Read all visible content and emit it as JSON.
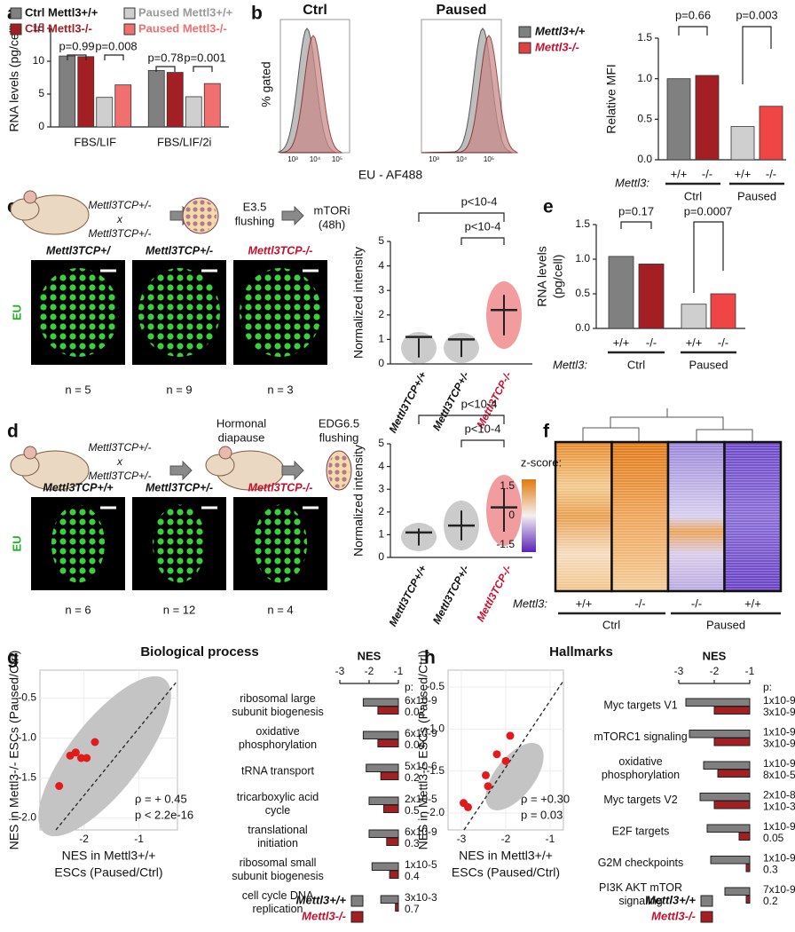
{
  "panel_labels": [
    "a",
    "b",
    "c",
    "d",
    "e",
    "f",
    "g",
    "h"
  ],
  "chart_data": [
    {
      "type": "bar",
      "ylabel": "RNA levels (pg/cell)",
      "categories": [
        "FBS/LIF",
        "FBS/LIF/2i"
      ],
      "series": [
        {
          "name": "Ctrl Mettl3+/+",
          "color": "#808080",
          "values": [
            10.8,
            8.6
          ]
        },
        {
          "name": "Ctrl Mettl3-/-",
          "color": "#a31f24",
          "values": [
            10.7,
            8.3
          ]
        },
        {
          "name": "Paused Mettl3+/+",
          "color": "#cfcfcf",
          "values": [
            4.5,
            4.6
          ]
        },
        {
          "name": "Paused Mettl3-/-",
          "color": "#f07070",
          "values": [
            6.4,
            6.6
          ]
        }
      ],
      "ylim": [
        0,
        15
      ],
      "yticks": [
        0,
        5,
        10,
        15
      ],
      "annotations": [
        "p=0.99",
        "p=0.008",
        "p=0.78",
        "p=0.001"
      ]
    },
    {
      "type": "bar",
      "ylabel": "Relative MFI",
      "axis_label": "Mettl3:",
      "categories": [
        "+/+",
        "-/-",
        "+/+",
        "-/-"
      ],
      "groups": [
        "Ctrl",
        "Paused"
      ],
      "values": [
        1.0,
        1.04,
        0.41,
        0.66
      ],
      "colors": [
        "#808080",
        "#a31f24",
        "#cfcfcf",
        "#f04545"
      ],
      "ylim": [
        0,
        1.5
      ],
      "yticks": [
        {
          "value": 0,
          "label": "0.0"
        },
        0.5,
        {
          "value": 1,
          "label": "1.0"
        },
        1.5
      ],
      "annotations": [
        "p=0.66",
        "p=0.003"
      ]
    },
    {
      "type": "bar",
      "ylabel": [
        "RNA levels",
        "(pg/cell)"
      ],
      "axis_label": "Mettl3:",
      "categories": [
        "+/+",
        "-/-",
        "+/+",
        "-/-"
      ],
      "groups": [
        "Ctrl",
        "Paused"
      ],
      "values": [
        1.04,
        0.93,
        0.35,
        0.5
      ],
      "colors": [
        "#808080",
        "#a31f24",
        "#cfcfcf",
        "#f04545"
      ],
      "ylim": [
        0,
        1.5
      ],
      "yticks": [
        {
          "value": 0,
          "label": "0.0"
        },
        0.5,
        {
          "value": 1,
          "label": "1.0"
        },
        1.5
      ],
      "annotations": [
        "p=0.17",
        "p=0.0007"
      ]
    },
    {
      "type": "dot",
      "ylabel": "Normalized intensity",
      "categories": [
        "Mettl3TCP+/+",
        "Mettl3TCP+/-",
        "Mettl3TCP-/-"
      ],
      "colors": [
        "#8c8c8c",
        "#8c8c8c",
        "#e0242a"
      ],
      "values": [
        1.1,
        1.0,
        2.2
      ],
      "ylim": [
        0,
        5
      ],
      "yticks": [
        0,
        1,
        2,
        3,
        4,
        5
      ],
      "annotations": [
        "p<10-4",
        "p<10-4"
      ]
    },
    {
      "type": "dot",
      "ylabel": "Normalized intensity",
      "categories": [
        "Mettl3TCP+/+",
        "Mettl3TCP+/-",
        "Mettl3TCP-/-"
      ],
      "colors": [
        "#8c8c8c",
        "#8c8c8c",
        "#e0242a"
      ],
      "values": [
        1.1,
        1.4,
        2.2
      ],
      "ylim": [
        0,
        5
      ],
      "yticks": [
        0,
        1,
        2,
        3,
        4,
        5
      ],
      "annotations": [
        "p<10-4",
        "p<10-4"
      ]
    },
    {
      "type": "scatter",
      "title": "Biological process",
      "x": [
        -2.45,
        -2.25,
        -2.15,
        -2.05,
        -1.95,
        -1.8
      ],
      "y": [
        -1.6,
        -1.22,
        -1.18,
        -1.25,
        -1.25,
        -1.05
      ],
      "color": "#e31a1c",
      "xlim": [
        -2.8,
        -0.3
      ],
      "ylim": [
        -2.15,
        -0.15
      ],
      "xticks": [
        -2,
        -1
      ],
      "yticks": [
        -0.5,
        {
          "value": -1,
          "label": "-1.0"
        },
        -1.5,
        {
          "value": -2,
          "label": "-2.0"
        }
      ],
      "xlabel": [
        "NES in Mettl3+/+",
        "ESCs (Paused/Ctrl)"
      ],
      "ylabel": "NES in Mettl3-/- ESCs (Paused/Ctrl)",
      "annotations": [
        "ρ = + 0.45",
        "p < 2.2e-16"
      ]
    },
    {
      "type": "barh",
      "axis_title": "NES",
      "p_header": "p:",
      "categories": [
        [
          "ribosomal large",
          "subunit biogenesis"
        ],
        [
          "oxidative",
          "phosphorylation"
        ],
        [
          "tRNA transport"
        ],
        [
          "tricarboxylic acid",
          "cycle"
        ],
        [
          "translational",
          "initiation"
        ],
        [
          "ribosomal small",
          "subunit biogenesis"
        ],
        [
          "cell cycle DNA",
          "replication"
        ]
      ],
      "series": [
        {
          "name": "Mettl3+/+",
          "color": "#808080",
          "values": [
            -2.2,
            -2.2,
            -2.1,
            -2.0,
            -2.0,
            -1.9,
            -1.6
          ]
        },
        {
          "name": "Mettl3-/-",
          "color": "#a31f24",
          "values": [
            -1.7,
            -1.7,
            -1.6,
            -1.5,
            -1.4,
            -1.3,
            -1.1
          ]
        }
      ],
      "xlim": [
        -3,
        -1
      ],
      "xticks": [
        -3,
        -2,
        -1
      ],
      "pvalues": [
        [
          "6x10-9",
          "0.02"
        ],
        [
          "6x10-9",
          "0.04"
        ],
        [
          "5x10-6",
          "0.2"
        ],
        [
          "2x10-5",
          "0.5"
        ],
        [
          "6x10-9",
          "0.3"
        ],
        [
          "1x10-5",
          "0.4"
        ],
        [
          "3x10-3",
          "0.7"
        ]
      ]
    },
    {
      "type": "scatter",
      "title": "Hallmarks",
      "x": [
        -2.95,
        -2.85,
        -2.45,
        -2.4,
        -2.2,
        -2.0,
        -1.9
      ],
      "y": [
        -1.88,
        -1.93,
        -1.55,
        -1.68,
        -1.3,
        -1.38,
        -1.08
      ],
      "color": "#e31a1c",
      "xlim": [
        -3.3,
        -0.7
      ],
      "ylim": [
        -2.2,
        -0.3
      ],
      "xticks": [
        -3,
        -2,
        -1
      ],
      "yticks": [
        -0.5,
        {
          "value": -1,
          "label": "-1.0"
        },
        -1.5,
        {
          "value": -2,
          "label": "-2.0"
        }
      ],
      "xlabel": [
        "NES in Mettl3+/+",
        "ESCs (Paused/Ctrl)"
      ],
      "ylabel": "NES in Mettl3-/- ESCs (Paused/Ctrl)",
      "annotations": [
        "ρ = +0.30",
        "p = 0.03"
      ]
    },
    {
      "type": "barh",
      "axis_title": "NES",
      "p_header": "p:",
      "categories": [
        [
          "Myc targets V1"
        ],
        [
          "mTORC1 signaling"
        ],
        [
          "oxidative",
          "phosphorylation"
        ],
        [
          "Myc targets V2"
        ],
        [
          "E2F targets"
        ],
        [
          "G2M checkpoints"
        ],
        [
          "PI3K AKT mTOR",
          "signaling"
        ]
      ],
      "series": [
        {
          "name": "Mettl3+/+",
          "color": "#808080",
          "values": [
            -2.8,
            -2.7,
            -2.3,
            -2.4,
            -2.2,
            -2.1,
            -1.7
          ]
        },
        {
          "name": "Mettl3-/-",
          "color": "#a31f24",
          "values": [
            -2.0,
            -2.0,
            -1.9,
            -2.0,
            -1.3,
            -1.1,
            -1.1
          ]
        }
      ],
      "xlim": [
        -3,
        -1
      ],
      "xticks": [
        -3,
        -2,
        -1
      ],
      "pvalues": [
        [
          "1x10-9",
          "3x10-9"
        ],
        [
          "1x10-9",
          "3x10-9"
        ],
        [
          "1x10-9",
          "8x10-5"
        ],
        [
          "2x10-8",
          "1x10-3"
        ],
        [
          "1x10-9",
          "0.05"
        ],
        [
          "1x10-9",
          "0.3"
        ],
        [
          "7x10-9",
          "0.2"
        ]
      ]
    }
  ],
  "panel_b": {
    "titles": [
      "Ctrl",
      "Paused"
    ],
    "ylabel": "% gated",
    "xlabel": "EU - AF488",
    "xticks": [
      "10³",
      "10⁴",
      "10⁵"
    ],
    "legend": [
      "Mettl3+/+",
      "Mettl3-/-"
    ]
  },
  "panel_c": {
    "cross": [
      "Mettl3TCP+/-",
      "x",
      "Mettl3TCP+/-"
    ],
    "steps": [
      [
        "E3.5",
        "flushing"
      ],
      [
        "mTORi",
        "(48h)"
      ]
    ],
    "stain": "EU",
    "images": [
      "Mettl3TCP+/",
      "Mettl3TCP+/-",
      "Mettl3TCP-/-"
    ],
    "n": [
      "n = 5",
      "n = 9",
      "n = 3"
    ]
  },
  "panel_d": {
    "cross": [
      "Mettl3TCP+/-",
      "x",
      "Mettl3TCP+/-"
    ],
    "steps": [
      [
        "Hormonal",
        "diapause"
      ],
      [
        "EDG6.5",
        "flushing"
      ]
    ],
    "stain": "EU",
    "images": [
      "Mettl3TCP+/+",
      "Mettl3TCP+/-",
      "Mettl3TCP-/-"
    ],
    "n": [
      "n = 6",
      "n = 12",
      "n = 4"
    ]
  },
  "panel_f": {
    "scale_title": "z-score:",
    "scale_ticks": [
      1.5,
      0,
      -1.5
    ],
    "axis_label": "Mettl3:",
    "columns": [
      "+/+",
      "-/-",
      "-/-",
      "+/+"
    ],
    "groups": [
      "Ctrl",
      "Paused"
    ]
  }
}
